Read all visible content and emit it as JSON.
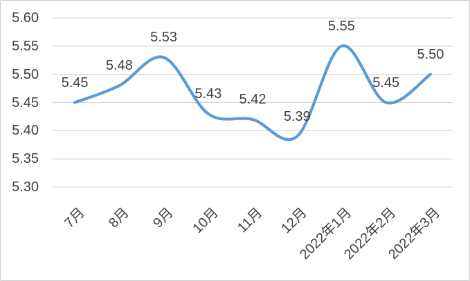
{
  "figure": {
    "background_color": "#ffffff",
    "border_color": "#c9c9c9"
  },
  "chart_data": {
    "type": "line",
    "title": "",
    "categories": [
      "7月",
      "8月",
      "9月",
      "10月",
      "11月",
      "12月",
      "2022年1月",
      "2022年2月",
      "2022年3月"
    ],
    "series": [
      {
        "name": "",
        "values": [
          5.45,
          5.48,
          5.53,
          5.43,
          5.42,
          5.39,
          5.55,
          5.45,
          5.5
        ],
        "data_labels": [
          "5.45",
          "5.48",
          "5.53",
          "5.43",
          "5.42",
          "5.39",
          "5.55",
          "5.45",
          "5.50"
        ],
        "line_color": "#5B9BD5",
        "smooth": true
      }
    ],
    "xlabel": "",
    "ylabel": "",
    "ylim": [
      5.3,
      5.6
    ],
    "y_tick_step": 0.05,
    "y_tick_labels": [
      "5.30",
      "5.35",
      "5.40",
      "5.45",
      "5.50",
      "5.55",
      "5.60"
    ],
    "grid": "horizontal",
    "gridline_color": "#D9D9D9",
    "tick_label_color": "#404040",
    "data_label_color": "#404040",
    "legend_position": "none",
    "x_tick_rotation_deg": 45
  }
}
